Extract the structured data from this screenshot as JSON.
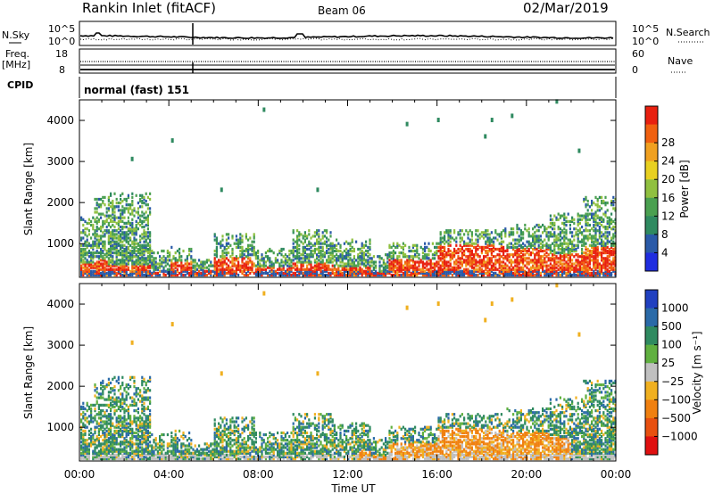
{
  "header": {
    "station": "Rankin Inlet (fitACF)",
    "beam": "Beam 06",
    "date": "02/Mar/2019"
  },
  "noise_panel": {
    "left_label": "N.Sky",
    "right_label": "N.Search",
    "left_ticks": [
      "10^5",
      "10^0"
    ],
    "right_ticks": [
      "10^5",
      "10^0"
    ]
  },
  "freq_panel": {
    "left_label_top": "Freq.",
    "left_label_bottom": "[MHz]",
    "right_label": "Nave",
    "left_ticks": [
      "18",
      "8"
    ],
    "right_ticks": [
      "60",
      "0"
    ]
  },
  "cpid_panel": {
    "label": "CPID",
    "mode_text": "normal (fast) 151"
  },
  "chart_data": [
    {
      "type": "heatmap",
      "title": "",
      "ylabel": "Slant Range [km]",
      "xlabel": "",
      "ylim": [
        180,
        4500
      ],
      "yticks": [
        "1000",
        "2000",
        "3000",
        "4000"
      ],
      "colorbar": {
        "label": "Power [dB]",
        "ticks": [
          "4",
          "8",
          "12",
          "16",
          "20",
          "24",
          "28"
        ],
        "colors": [
          "#1f2de0",
          "#2a5aa8",
          "#2f8a60",
          "#4aa050",
          "#90c040",
          "#e8d020",
          "#f0a020",
          "#f06010",
          "#e82010"
        ]
      }
    },
    {
      "type": "heatmap",
      "title": "",
      "ylabel": "Slant Range [km]",
      "xlabel": "Time UT",
      "ylim": [
        180,
        4500
      ],
      "yticks": [
        "1000",
        "2000",
        "3000",
        "4000"
      ],
      "xticks": [
        "00:00",
        "04:00",
        "08:00",
        "12:00",
        "16:00",
        "20:00",
        "00:00"
      ],
      "colorbar": {
        "label": "Velocity [m s⁻¹]",
        "ticks": [
          "1000",
          "500",
          "100",
          "25",
          "−25",
          "−100",
          "−500",
          "−1000"
        ],
        "colors": [
          "#2040c0",
          "#2a6aa8",
          "#2f8a60",
          "#60b040",
          "#c0c0c0",
          "#f0b020",
          "#f08010",
          "#e85010",
          "#e01010"
        ]
      }
    }
  ]
}
